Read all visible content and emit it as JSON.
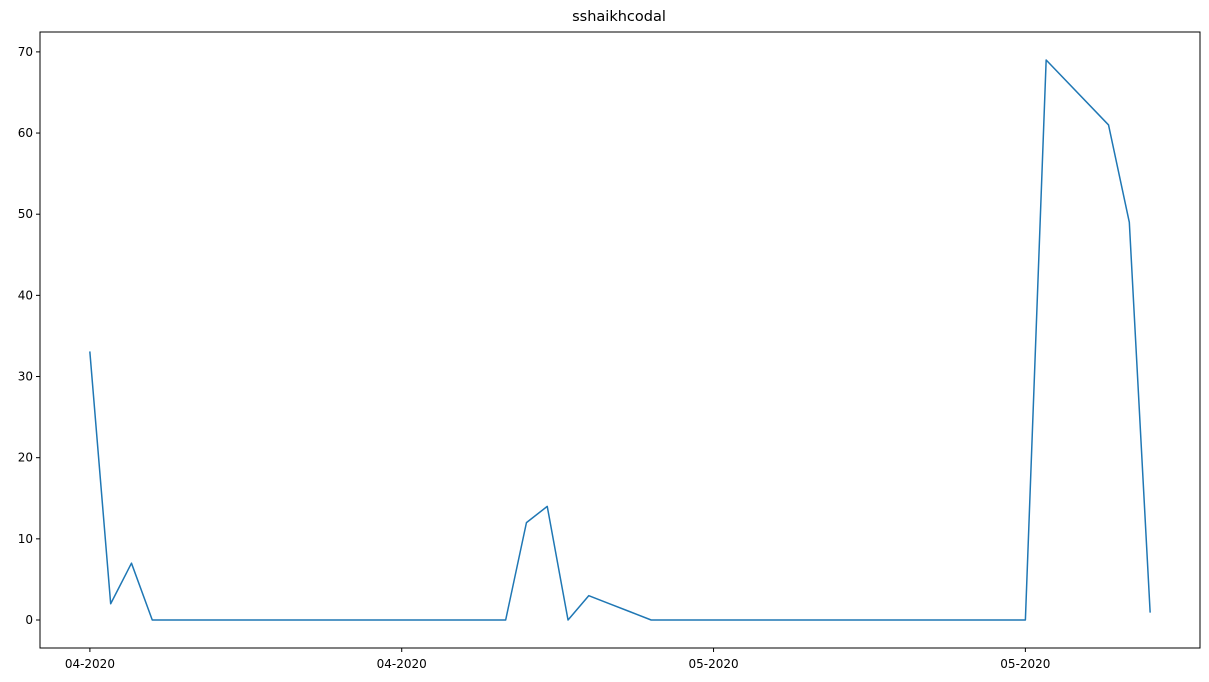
{
  "chart_data": {
    "type": "line",
    "title": "sshaikhcodal",
    "xlabel": "",
    "ylabel": "",
    "x_tick_labels": [
      "04-2020",
      "04-2020",
      "05-2020",
      "05-2020"
    ],
    "x_ticks_day_index": [
      0,
      15,
      30,
      45
    ],
    "xlim_day_index": [
      -2.4,
      53.4
    ],
    "y_ticks": [
      0,
      10,
      20,
      30,
      40,
      50,
      60,
      70
    ],
    "ylim": [
      -3.45,
      72.45
    ],
    "grid": false,
    "series": [
      {
        "color": "#1f77b4",
        "x_day_index": [
          0,
          1,
          2,
          3,
          4,
          5,
          6,
          7,
          8,
          9,
          10,
          11,
          12,
          13,
          14,
          15,
          16,
          17,
          18,
          19,
          20,
          21,
          22,
          23,
          24,
          25,
          26,
          27,
          28,
          29,
          30,
          31,
          32,
          33,
          34,
          35,
          36,
          37,
          38,
          39,
          40,
          41,
          42,
          43,
          44,
          45,
          46,
          49,
          50,
          51
        ],
        "values": [
          33,
          2,
          7,
          0,
          0,
          0,
          0,
          0,
          0,
          0,
          0,
          0,
          0,
          0,
          0,
          0,
          0,
          0,
          0,
          0,
          0,
          12,
          14,
          0,
          3,
          2,
          1,
          0,
          0,
          0,
          0,
          0,
          0,
          0,
          0,
          0,
          0,
          0,
          0,
          0,
          0,
          0,
          0,
          0,
          0,
          0,
          69,
          61,
          49,
          1
        ]
      }
    ]
  }
}
